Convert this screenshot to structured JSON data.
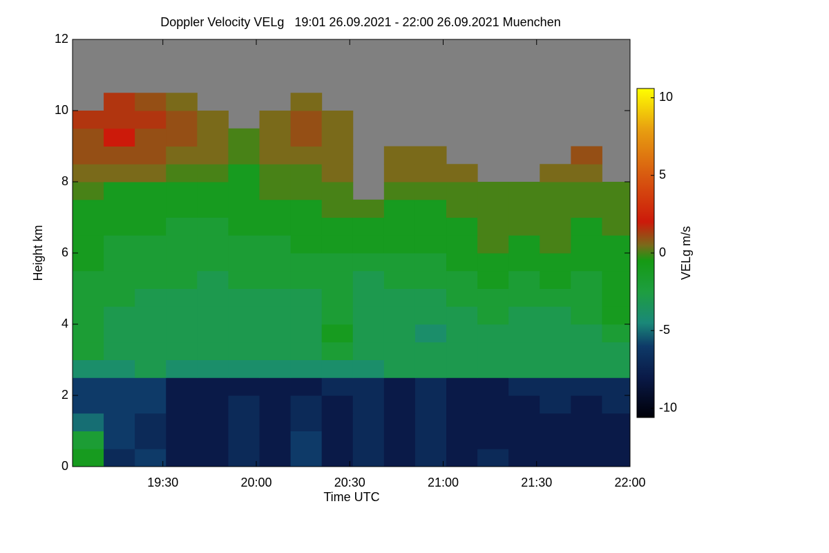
{
  "chart_data": {
    "type": "heatmap",
    "title": "Doppler Velocity VELg   19:01 26.09.2021 - 22:00 26.09.2021 Muenchen",
    "x_label": "Time UTC",
    "y_label": "Height km",
    "colorbar_label": "VELg m/s",
    "xlim": [
      "19:01",
      "22:00"
    ],
    "xticks": [
      "19:30",
      "20:00",
      "20:30",
      "21:00",
      "21:30",
      "22:00"
    ],
    "ylim": [
      0,
      12
    ],
    "yticks": [
      0,
      2,
      4,
      6,
      8,
      10,
      12
    ],
    "zlim": [
      -10.6,
      10.6
    ],
    "zticks": [
      10,
      5,
      0,
      -5,
      -10
    ],
    "missing_color": "#808080",
    "colorscale": [
      [
        -10.6,
        "#000008"
      ],
      [
        -8,
        "#0a1a48"
      ],
      [
        -6,
        "#0e3a68"
      ],
      [
        -4.5,
        "#1a8878"
      ],
      [
        -2.5,
        "#1e9e40"
      ],
      [
        -0.5,
        "#159a14"
      ],
      [
        0.5,
        "#7a6a1a"
      ],
      [
        2,
        "#cc1a0a"
      ],
      [
        5,
        "#d85a10"
      ],
      [
        8,
        "#e8a010"
      ],
      [
        10.6,
        "#ffff00"
      ]
    ],
    "x": [
      "19:06",
      "19:16",
      "19:26",
      "19:36",
      "19:46",
      "19:56",
      "20:06",
      "20:16",
      "20:26",
      "20:36",
      "20:46",
      "20:56",
      "21:06",
      "21:16",
      "21:26",
      "21:36",
      "21:46",
      "21:56"
    ],
    "y": [
      0.25,
      0.75,
      1.25,
      1.75,
      2.25,
      2.75,
      3.25,
      3.75,
      4.25,
      4.75,
      5.25,
      5.75,
      6.25,
      6.75,
      7.25,
      7.75,
      8.25,
      8.75,
      9.25,
      9.75,
      10.25,
      10.75,
      11.25,
      11.75
    ],
    "values": [
      [
        -1,
        -7,
        -6,
        -8,
        -8,
        -7,
        -8,
        -6,
        -8,
        -7,
        -8,
        -7,
        -8,
        -7,
        -8,
        -8,
        -8,
        -8
      ],
      [
        -2,
        -6,
        -7,
        -8,
        -8,
        -7,
        -8,
        -6,
        -8,
        -7,
        -8,
        -7,
        -8,
        -8,
        -8,
        -8,
        -8,
        -8
      ],
      [
        -5,
        -6,
        -7,
        -8,
        -8,
        -7,
        -8,
        -7,
        -8,
        -7,
        -8,
        -7,
        -8,
        -8,
        -8,
        -8,
        -8,
        -8
      ],
      [
        -6,
        -6,
        -6,
        -8,
        -8,
        -7,
        -8,
        -7,
        -8,
        -7,
        -8,
        -7,
        -8,
        -8,
        -8,
        -7,
        -8,
        -7
      ],
      [
        -6,
        -6,
        -6,
        -8,
        -8,
        -8,
        -8,
        -8,
        -7,
        -7,
        -8,
        -7,
        -8,
        -8,
        -7,
        -7,
        -7,
        -7
      ],
      [
        -4,
        -4,
        -3,
        -4,
        -4,
        -4,
        -4,
        -4,
        -4,
        -4,
        -3,
        -3,
        -3,
        -3,
        -3,
        -3,
        -3,
        -3
      ],
      [
        -2,
        -3,
        -3,
        -3,
        -3,
        -3,
        -3,
        -3,
        -2,
        -3,
        -3,
        -3,
        -3,
        -3,
        -3,
        -3,
        -3,
        -3
      ],
      [
        -2,
        -3,
        -3,
        -3,
        -3,
        -3,
        -3,
        -3,
        -1,
        -3,
        -3,
        -4,
        -3,
        -3,
        -3,
        -3,
        -3,
        -2
      ],
      [
        -2,
        -3,
        -3,
        -3,
        -3,
        -3,
        -3,
        -3,
        -2,
        -3,
        -3,
        -3,
        -3,
        -2,
        -3,
        -3,
        -2,
        -1
      ],
      [
        -2,
        -2,
        -3,
        -3,
        -3,
        -3,
        -3,
        -3,
        -2,
        -3,
        -3,
        -3,
        -2,
        -2,
        -2,
        -2,
        -2,
        -1
      ],
      [
        -2,
        -2,
        -2,
        -2,
        -3,
        -2,
        -2,
        -2,
        -2,
        -3,
        -2,
        -2,
        -2,
        -1,
        -2,
        -1,
        -2,
        -1
      ],
      [
        -1,
        -2,
        -2,
        -2,
        -2,
        -2,
        -2,
        -2,
        -2,
        -2,
        -2,
        -2,
        -1,
        -1,
        -1,
        -1,
        -1,
        -1
      ],
      [
        -1,
        -2,
        -2,
        -2,
        -2,
        -2,
        -2,
        -1,
        -1,
        -1,
        -1,
        -1,
        -1,
        0,
        -1,
        0,
        -1,
        -1
      ],
      [
        -1,
        -1,
        -1,
        -2,
        -2,
        -1,
        -1,
        -1,
        -1,
        -1,
        -1,
        -1,
        -1,
        0,
        0,
        0,
        -1,
        0
      ],
      [
        -1,
        -1,
        -1,
        -1,
        -1,
        -1,
        -1,
        -1,
        0,
        0,
        -1,
        -1,
        0,
        0,
        0,
        0,
        0,
        0
      ],
      [
        0,
        -1,
        -1,
        -1,
        -1,
        -1,
        0,
        0,
        0,
        null,
        0,
        0,
        0,
        0,
        0,
        0,
        0,
        0
      ],
      [
        0.5,
        0.5,
        0.5,
        0,
        0,
        -1,
        0,
        0,
        0.5,
        null,
        0.5,
        0.5,
        0.5,
        null,
        null,
        0.5,
        0.5,
        null
      ],
      [
        1,
        1,
        1,
        0.5,
        0.5,
        0,
        0.5,
        0.5,
        0.5,
        null,
        0.5,
        0.5,
        null,
        null,
        null,
        null,
        1,
        null
      ],
      [
        1,
        2,
        1,
        1,
        0.5,
        0,
        0.5,
        1,
        0.5,
        null,
        null,
        null,
        null,
        null,
        null,
        null,
        null,
        null
      ],
      [
        1.5,
        1.5,
        1.5,
        1,
        0.5,
        null,
        0.5,
        1,
        0.5,
        null,
        null,
        null,
        null,
        null,
        null,
        null,
        null,
        null
      ],
      [
        null,
        1.5,
        1,
        0.5,
        null,
        null,
        null,
        0.5,
        null,
        null,
        null,
        null,
        null,
        null,
        null,
        null,
        null,
        null
      ],
      [
        null,
        null,
        null,
        null,
        null,
        null,
        null,
        null,
        null,
        null,
        null,
        null,
        null,
        null,
        null,
        null,
        null,
        null
      ],
      [
        null,
        null,
        null,
        null,
        null,
        null,
        null,
        null,
        null,
        null,
        null,
        null,
        null,
        null,
        null,
        null,
        null,
        null
      ],
      [
        null,
        null,
        null,
        null,
        null,
        null,
        null,
        null,
        null,
        null,
        null,
        null,
        null,
        null,
        null,
        null,
        null,
        null
      ]
    ]
  }
}
